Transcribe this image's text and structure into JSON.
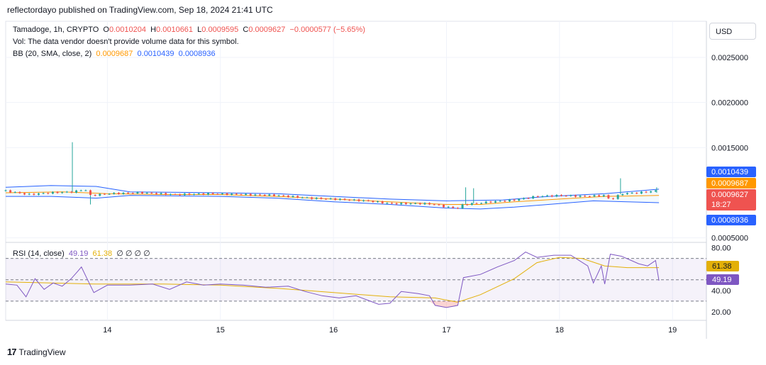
{
  "header": {
    "publisher": "reflectordayo published on TradingView.com, Sep 18, 2024 21:41 UTC"
  },
  "legend": {
    "symbol": "Tamadoge, 1h, CRYPTO",
    "o_label": "O",
    "o": "0.0010204",
    "h_label": "H",
    "h": "0.0010661",
    "l_label": "L",
    "l": "0.0009595",
    "c_label": "C",
    "c": "0.0009627",
    "change": "−0.0000577 (−5.65%)",
    "vol": "Vol: The data vendor doesn't provide volume data for this symbol.",
    "bb_label": "BB (20, SMA, close, 2)",
    "bb_basis": "0.0009687",
    "bb_upper": "0.0010439",
    "bb_lower": "0.0008936",
    "rsi_label": "RSI (14, close)",
    "rsi_value": "49.19",
    "rsi_ma": "61.38",
    "rsi_extra": "∅ ∅ ∅ ∅"
  },
  "currency_button": "USD",
  "footer": {
    "brand": "TradingView",
    "logo_text": "17"
  },
  "colors": {
    "up": "#26a69a",
    "down": "#ef5350",
    "bb_basis": "#ff9800",
    "bb_band": "#2962ff",
    "rsi": "#7e57c2",
    "rsi_ma": "#e3b008"
  },
  "chart_data": [
    {
      "type": "candlestick",
      "series": [
        {
          "name": "Tamadoge, 1h, CRYPTO"
        },
        {
          "name": "BB (20, SMA, close, 2)"
        }
      ],
      "ylim": [
        0.00045,
        0.0029
      ],
      "yticks": [
        "0.0025000",
        "0.0020000",
        "0.0015000",
        "0.0005000"
      ],
      "xlim": [
        13.1,
        19.3
      ],
      "xticks": [
        "14",
        "15",
        "16",
        "17",
        "18",
        "19"
      ],
      "price_labels": [
        {
          "value": 0.0010439,
          "text": "0.0010439",
          "color": "#2962ff"
        },
        {
          "value": 0.0009687,
          "text": "0.0009687",
          "color": "#ff9800"
        },
        {
          "value": 0.0009627,
          "text": "0.0009627",
          "sub": "18:27",
          "color": "#ef5350"
        },
        {
          "value": 0.0008936,
          "text": "0.0008936",
          "color": "#2962ff"
        }
      ],
      "close_path": [
        [
          13.1,
          0.00102
        ],
        [
          13.3,
          0.00098
        ],
        [
          13.5,
          0.001
        ],
        [
          13.7,
          0.00101
        ],
        [
          13.8,
          0.00104
        ],
        [
          13.85,
          0.00097
        ],
        [
          14.0,
          0.00099
        ],
        [
          14.3,
          0.001
        ],
        [
          14.6,
          0.00098
        ],
        [
          14.9,
          0.00099
        ],
        [
          15.2,
          0.00098
        ],
        [
          15.5,
          0.00097
        ],
        [
          15.8,
          0.00094
        ],
        [
          16.0,
          0.00093
        ],
        [
          16.3,
          0.00091
        ],
        [
          16.5,
          0.00088
        ],
        [
          16.8,
          0.00088
        ],
        [
          16.9,
          0.00087
        ],
        [
          17.0,
          0.00084
        ],
        [
          17.1,
          0.00083
        ],
        [
          17.15,
          0.00087
        ],
        [
          17.4,
          0.0009
        ],
        [
          17.6,
          0.00092
        ],
        [
          17.8,
          0.00096
        ],
        [
          18.0,
          0.00097
        ],
        [
          18.2,
          0.00096
        ],
        [
          18.4,
          0.00097
        ],
        [
          18.45,
          0.00092
        ],
        [
          18.55,
          0.00099
        ],
        [
          18.7,
          0.001
        ],
        [
          18.85,
          0.00102
        ],
        [
          18.88,
          0.00096
        ]
      ],
      "wicks": [
        {
          "x": 13.69,
          "high": 0.00156
        },
        {
          "x": 13.85,
          "low": 0.00087
        },
        {
          "x": 17.17,
          "high": 0.00106
        },
        {
          "x": 17.24,
          "high": 0.00105
        },
        {
          "x": 18.54,
          "high": 0.00116
        },
        {
          "x": 18.86,
          "high": 0.00106
        }
      ],
      "bb_basis": [
        [
          13.1,
          0.001
        ],
        [
          13.6,
          0.00101
        ],
        [
          14.0,
          0.00099
        ],
        [
          14.5,
          0.00098
        ],
        [
          15.0,
          0.00098
        ],
        [
          15.5,
          0.00096
        ],
        [
          16.0,
          0.00093
        ],
        [
          16.5,
          0.0009
        ],
        [
          17.0,
          0.00087
        ],
        [
          17.3,
          0.00087
        ],
        [
          17.6,
          0.0009
        ],
        [
          18.0,
          0.00093
        ],
        [
          18.4,
          0.00096
        ],
        [
          18.88,
          0.00097
        ]
      ],
      "bb_upper": [
        [
          13.1,
          0.00106
        ],
        [
          13.5,
          0.00108
        ],
        [
          13.9,
          0.00107
        ],
        [
          14.2,
          0.00101
        ],
        [
          15.0,
          0.001
        ],
        [
          15.5,
          0.00099
        ],
        [
          16.0,
          0.00096
        ],
        [
          16.5,
          0.00093
        ],
        [
          17.0,
          0.00091
        ],
        [
          17.5,
          0.00092
        ],
        [
          17.9,
          0.00096
        ],
        [
          18.4,
          0.00099
        ],
        [
          18.88,
          0.00104
        ]
      ],
      "bb_lower": [
        [
          13.1,
          0.00096
        ],
        [
          13.5,
          0.00096
        ],
        [
          13.9,
          0.00094
        ],
        [
          14.2,
          0.00097
        ],
        [
          15.0,
          0.00096
        ],
        [
          15.5,
          0.00094
        ],
        [
          16.0,
          0.0009
        ],
        [
          16.5,
          0.00087
        ],
        [
          17.0,
          0.00083
        ],
        [
          17.3,
          0.00082
        ],
        [
          17.6,
          0.00084
        ],
        [
          17.9,
          0.00087
        ],
        [
          18.3,
          0.00091
        ],
        [
          18.6,
          0.0009
        ],
        [
          18.88,
          0.00089
        ]
      ]
    },
    {
      "type": "line",
      "series": [
        {
          "name": "RSI (14, close)"
        }
      ],
      "ylim": [
        12,
        85
      ],
      "yticks": [
        "80.00",
        "40.00",
        "20.00"
      ],
      "bands": [
        70,
        50,
        30
      ],
      "rsi": [
        [
          13.1,
          46
        ],
        [
          13.2,
          45
        ],
        [
          13.28,
          34
        ],
        [
          13.36,
          51
        ],
        [
          13.44,
          41
        ],
        [
          13.52,
          47
        ],
        [
          13.6,
          44
        ],
        [
          13.68,
          51
        ],
        [
          13.73,
          57
        ],
        [
          13.77,
          62
        ],
        [
          13.82,
          51
        ],
        [
          13.88,
          38
        ],
        [
          14.0,
          45
        ],
        [
          14.2,
          45
        ],
        [
          14.4,
          46
        ],
        [
          14.55,
          41
        ],
        [
          14.7,
          48
        ],
        [
          14.85,
          45
        ],
        [
          15.0,
          46
        ],
        [
          15.2,
          45
        ],
        [
          15.4,
          43
        ],
        [
          15.6,
          44
        ],
        [
          15.75,
          39
        ],
        [
          15.9,
          35
        ],
        [
          16.05,
          33
        ],
        [
          16.2,
          35
        ],
        [
          16.3,
          31
        ],
        [
          16.4,
          27
        ],
        [
          16.5,
          28
        ],
        [
          16.6,
          39
        ],
        [
          16.75,
          37
        ],
        [
          16.85,
          35
        ],
        [
          16.9,
          26
        ],
        [
          17.0,
          24
        ],
        [
          17.1,
          26
        ],
        [
          17.15,
          52
        ],
        [
          17.3,
          55
        ],
        [
          17.45,
          62
        ],
        [
          17.6,
          68
        ],
        [
          17.7,
          76
        ],
        [
          17.8,
          71
        ],
        [
          17.95,
          73
        ],
        [
          18.1,
          73
        ],
        [
          18.25,
          63
        ],
        [
          18.3,
          47
        ],
        [
          18.37,
          63
        ],
        [
          18.4,
          46
        ],
        [
          18.45,
          74
        ],
        [
          18.55,
          72
        ],
        [
          18.7,
          65
        ],
        [
          18.78,
          63
        ],
        [
          18.85,
          68
        ],
        [
          18.88,
          49.19
        ]
      ],
      "rsi_ma": [
        [
          13.1,
          48
        ],
        [
          13.5,
          47
        ],
        [
          13.9,
          46
        ],
        [
          14.5,
          46
        ],
        [
          15.0,
          45
        ],
        [
          15.5,
          42
        ],
        [
          16.0,
          38
        ],
        [
          16.5,
          34
        ],
        [
          16.9,
          33
        ],
        [
          17.1,
          29
        ],
        [
          17.3,
          36
        ],
        [
          17.6,
          51
        ],
        [
          17.8,
          66
        ],
        [
          18.0,
          71
        ],
        [
          18.2,
          70
        ],
        [
          18.4,
          63
        ],
        [
          18.6,
          61.38
        ],
        [
          18.88,
          61.38
        ]
      ],
      "value_labels": [
        {
          "value": 61.38,
          "text": "61.38",
          "color": "#e3b008"
        },
        {
          "value": 49.19,
          "text": "49.19",
          "color": "#7e57c2"
        }
      ]
    }
  ]
}
